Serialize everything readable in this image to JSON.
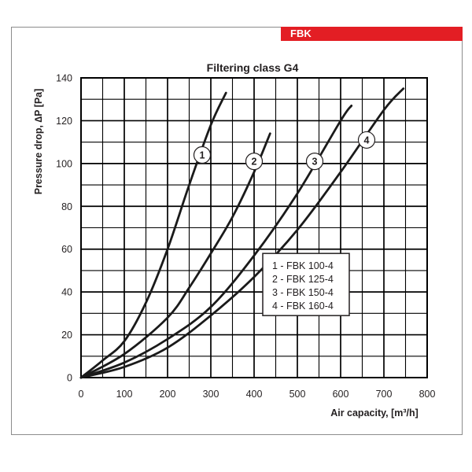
{
  "brand_label": "FBK",
  "colors": {
    "brand": "#e31e24",
    "grid": "#000000",
    "curve": "#1a1a1a"
  },
  "chart_data": {
    "type": "line",
    "title": "Filtering class G4",
    "xlabel": "Air capacity, [m³/h]",
    "ylabel": "Pressure drop, ∆P [Pa]",
    "xlim": [
      0,
      800
    ],
    "ylim": [
      0,
      140
    ],
    "x_ticks": [
      0,
      100,
      200,
      300,
      400,
      500,
      600,
      700,
      800
    ],
    "y_ticks": [
      0,
      20,
      40,
      60,
      80,
      100,
      120,
      140
    ],
    "grid": true,
    "legend_position": "right",
    "series": [
      {
        "id": "1",
        "name": "FBK 100-4",
        "legend_label": "1 - FBK 100-4",
        "x": [
          0,
          50,
          100,
          150,
          200,
          250,
          300,
          335
        ],
        "y": [
          0,
          8,
          17,
          35,
          60,
          90,
          118,
          133
        ]
      },
      {
        "id": "2",
        "name": "FBK 125-4",
        "legend_label": "2 - FBK 125-4",
        "x": [
          0,
          100,
          200,
          250,
          300,
          350,
          400,
          437
        ],
        "y": [
          0,
          11,
          28,
          42,
          58,
          75,
          96,
          114
        ]
      },
      {
        "id": "3",
        "name": "FBK 150-4",
        "legend_label": "3 - FBK 150-4",
        "x": [
          0,
          100,
          200,
          300,
          400,
          500,
          600,
          625
        ],
        "y": [
          0,
          7,
          18,
          33,
          57,
          86,
          120,
          127
        ]
      },
      {
        "id": "4",
        "name": "FBK 160-4",
        "legend_label": "4 - FBK 160-4",
        "x": [
          0,
          100,
          200,
          300,
          400,
          500,
          600,
          700,
          745
        ],
        "y": [
          0,
          5,
          14,
          29,
          47,
          69,
          96,
          125,
          135
        ]
      }
    ],
    "curve_labels": [
      {
        "text": "1",
        "series": "1",
        "x": 280,
        "y": 104
      },
      {
        "text": "2",
        "series": "2",
        "x": 400,
        "y": 101
      },
      {
        "text": "3",
        "series": "3",
        "x": 540,
        "y": 101
      },
      {
        "text": "4",
        "series": "4",
        "x": 660,
        "y": 111
      }
    ]
  }
}
